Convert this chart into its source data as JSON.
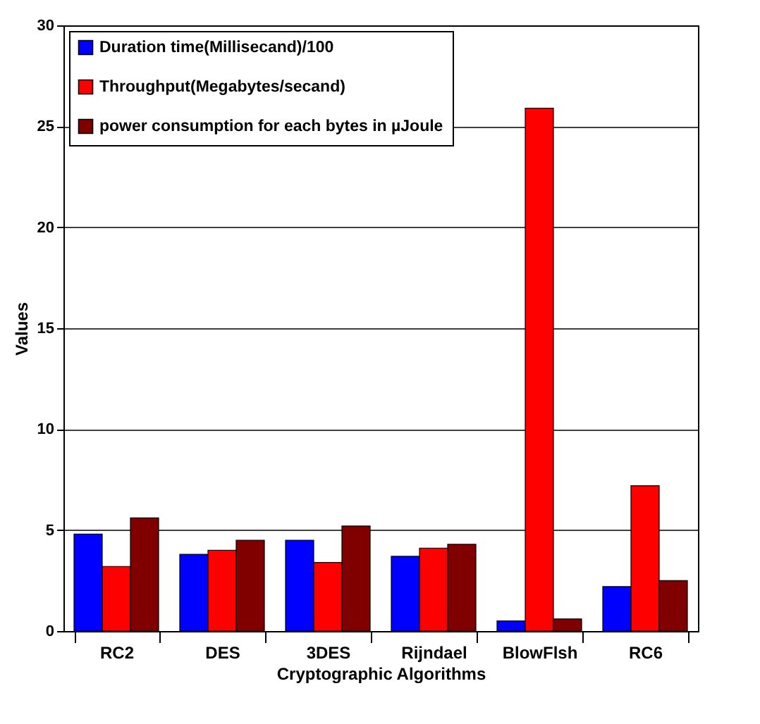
{
  "chart_data": {
    "type": "bar",
    "xlabel": "Cryptographic Algorithms",
    "ylabel": "Values",
    "categories": [
      "RC2",
      "DES",
      "3DES",
      "Rijndael",
      "BlowFlsh",
      "RC6"
    ],
    "series": [
      {
        "name": "Duration time(Millisecand)/100",
        "color": "#0000ff",
        "values": [
          4.8,
          3.8,
          4.5,
          3.7,
          0.5,
          2.2
        ]
      },
      {
        "name": "Throughput(Megabytes/secand)",
        "color": "#ff0000",
        "values": [
          3.2,
          4.0,
          3.4,
          4.1,
          25.9,
          7.2
        ]
      },
      {
        "name": "power consumption for each bytes in µJoule",
        "color": "#800000",
        "values": [
          5.6,
          4.5,
          5.2,
          4.3,
          0.6,
          2.5
        ]
      }
    ],
    "ylim": [
      0,
      30
    ],
    "yticks": [
      0,
      5,
      10,
      15,
      20,
      25,
      30
    ],
    "grid": "y",
    "legend": "top left"
  }
}
